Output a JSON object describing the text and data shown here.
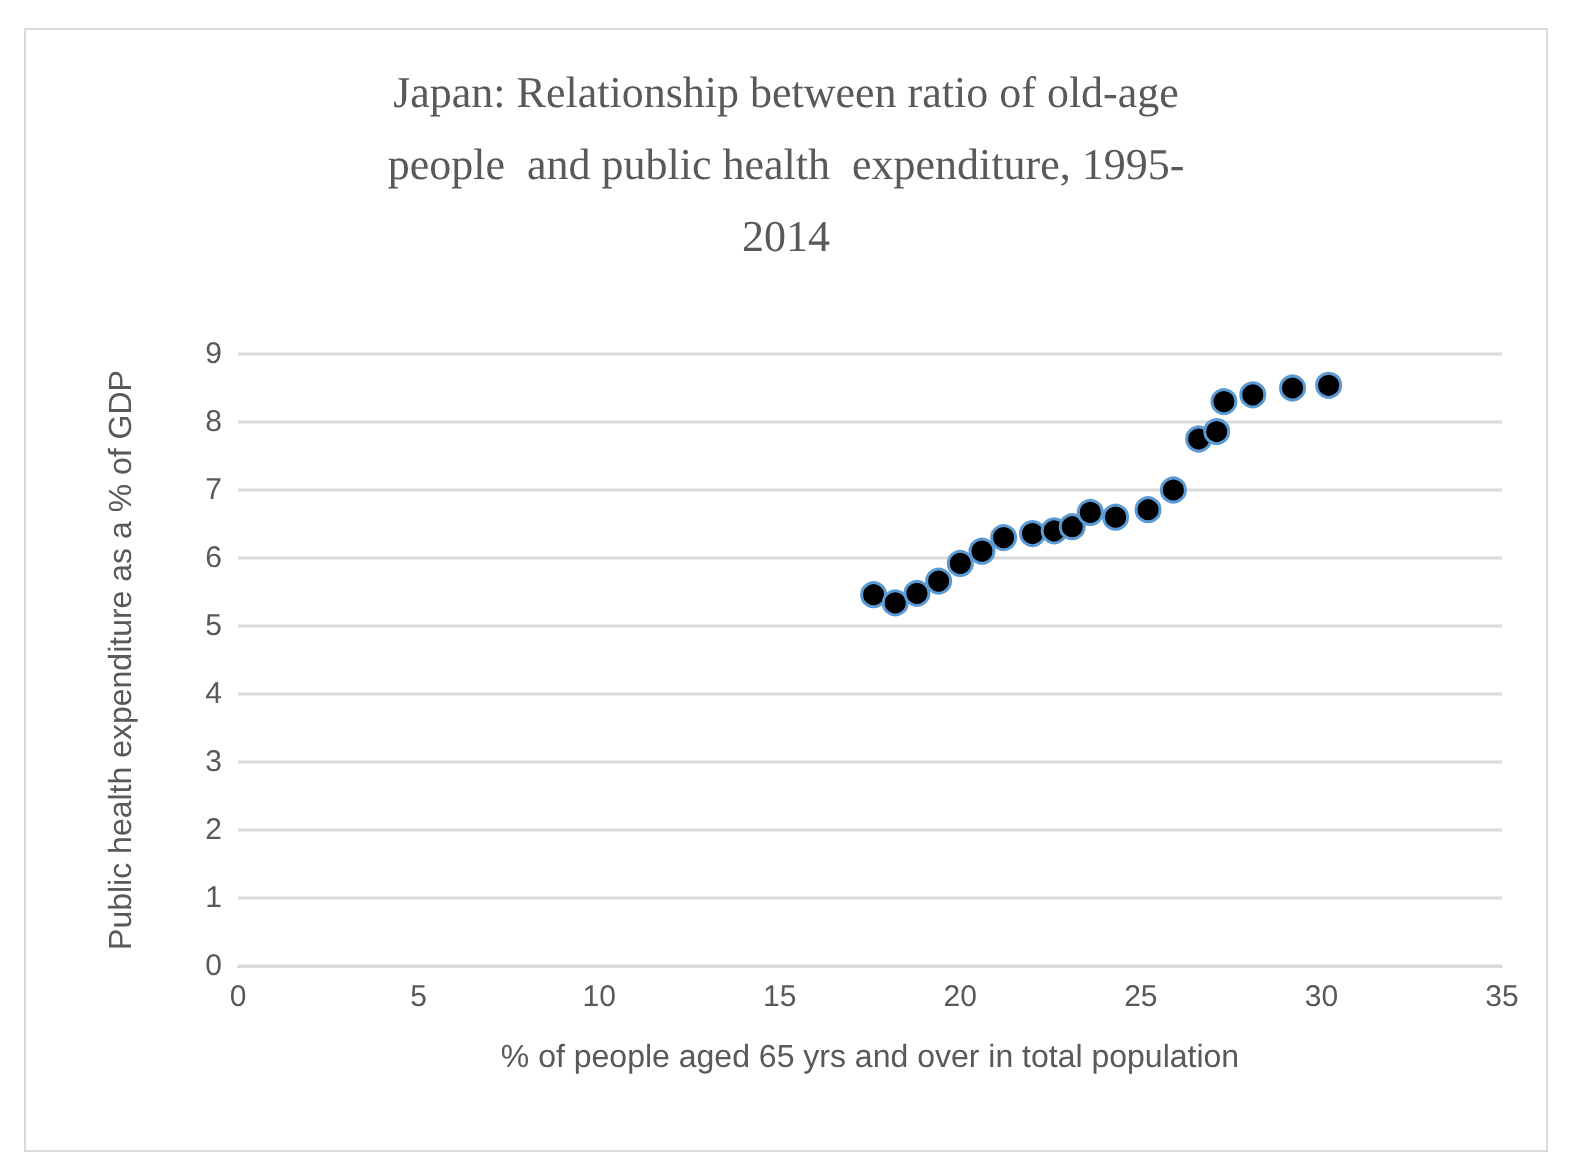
{
  "chart_data": {
    "type": "scatter",
    "title": "Japan: Relationship between ratio of old-age\npeople  and public health  expenditure, 1995-\n2014",
    "xlabel": "% of people aged 65 yrs and over in total population",
    "ylabel": "Public health expenditure as a % of GDP",
    "x": [
      17.6,
      18.2,
      18.8,
      19.4,
      20.0,
      20.6,
      21.2,
      22.0,
      22.6,
      23.1,
      23.6,
      24.3,
      25.2,
      25.9,
      26.6,
      27.1,
      27.3,
      28.1,
      29.2,
      30.2
    ],
    "series": [
      {
        "color": "#000000",
        "values": [
          5.46,
          5.34,
          5.48,
          5.66,
          5.92,
          6.1,
          6.3,
          6.36,
          6.4,
          6.46,
          6.67,
          6.6,
          6.71,
          7.0,
          7.75,
          7.86,
          8.3,
          8.4,
          8.5,
          8.54
        ]
      }
    ],
    "xlim": [
      0,
      35
    ],
    "xticks": [
      0,
      5,
      10,
      15,
      20,
      25,
      30,
      35
    ],
    "ylim": [
      0,
      9
    ],
    "yticks": [
      0,
      1,
      2,
      3,
      4,
      5,
      6,
      7,
      8,
      9
    ],
    "grid": "y",
    "marker": "circle"
  }
}
